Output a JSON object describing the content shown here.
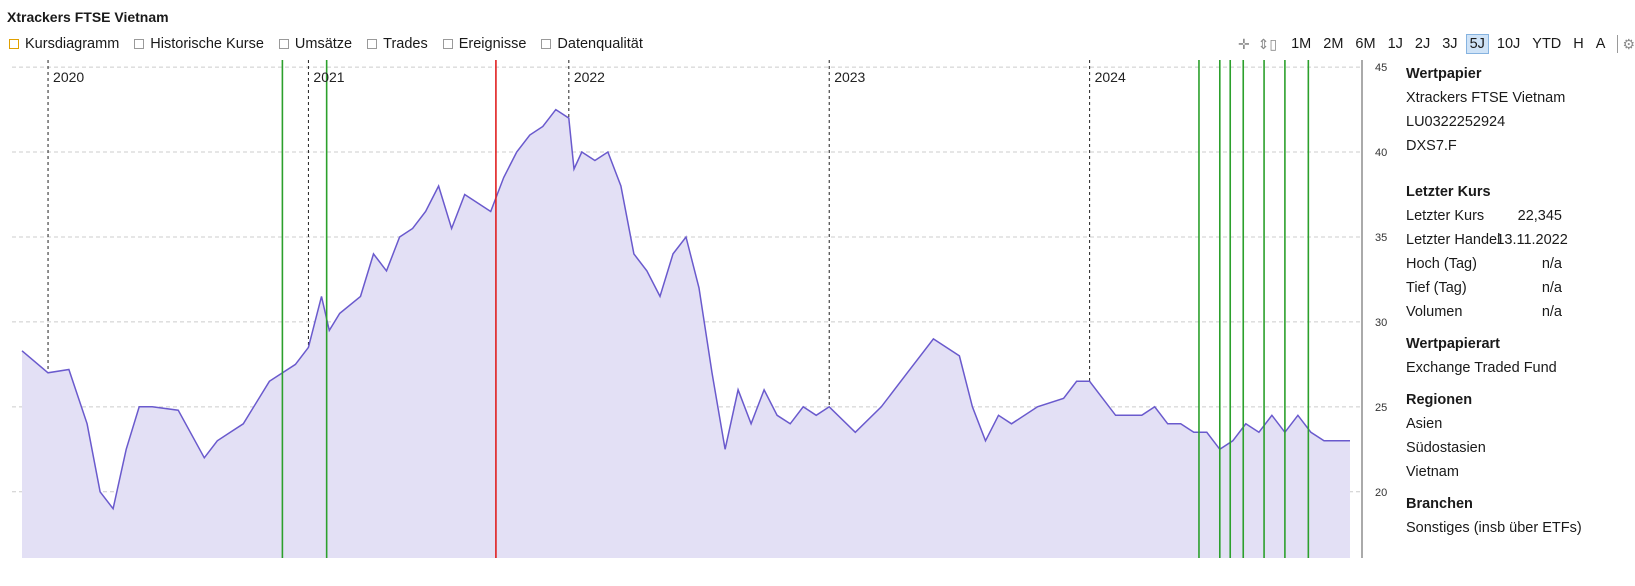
{
  "title": "Xtrackers FTSE Vietnam",
  "tabs": [
    {
      "label": "Kursdiagramm",
      "active": true
    },
    {
      "label": "Historische Kurse",
      "active": false
    },
    {
      "label": "Umsätze",
      "active": false
    },
    {
      "label": "Trades",
      "active": false
    },
    {
      "label": "Ereignisse",
      "active": false
    },
    {
      "label": "Datenqualität",
      "active": false
    }
  ],
  "toolbar": {
    "icons": [
      "crosshair-icon",
      "scale-icon"
    ],
    "ranges": [
      "1M",
      "2M",
      "6M",
      "1J",
      "2J",
      "3J",
      "5J",
      "10J",
      "YTD",
      "H",
      "A"
    ],
    "active_range": "5J",
    "settings_icon": "gear-icon"
  },
  "sidebar": {
    "wertpapier": {
      "heading": "Wertpapier",
      "name": "Xtrackers FTSE Vietnam",
      "isin": "LU0322252924",
      "symbol": "DXS7.F"
    },
    "letzter_kurs": {
      "heading": "Letzter Kurs",
      "rows": [
        {
          "label": "Letzter Kurs",
          "value": "22,345"
        },
        {
          "label": "Letzter Handel",
          "value": "13.11.2022"
        },
        {
          "label": "Hoch (Tag)",
          "value": "n/a"
        },
        {
          "label": "Tief (Tag)",
          "value": "n/a"
        },
        {
          "label": "Volumen",
          "value": "n/a"
        }
      ]
    },
    "wertpapierart": {
      "heading": "Wertpapierart",
      "value": "Exchange Traded Fund"
    },
    "regionen": {
      "heading": "Regionen",
      "items": [
        "Asien",
        "Südostasien",
        "Vietnam"
      ]
    },
    "branchen": {
      "heading": "Branchen",
      "value": "Sonstiges (insb über ETFs)"
    }
  },
  "colors": {
    "line": "#6a5acd",
    "area": "#e3e0f5",
    "buy": "#2ca02c",
    "sell": "#e02020",
    "grid": "#cccccc"
  },
  "chart_data": {
    "type": "area",
    "x_tick_labels": [
      "2020",
      "2021",
      "2022",
      "2023",
      "2024"
    ],
    "y_ticks": [
      20,
      25,
      30,
      35,
      40,
      45
    ],
    "ylim": [
      16.1,
      45.3
    ],
    "xlim": [
      2019.9,
      2025.0
    ],
    "grid": true,
    "series": [
      {
        "x": [
          2019.9,
          2020.0,
          2020.08,
          2020.15,
          2020.2,
          2020.25,
          2020.3,
          2020.35,
          2020.4,
          2020.5,
          2020.6,
          2020.65,
          2020.7,
          2020.75,
          2020.85,
          2020.95,
          2021.0,
          2021.05,
          2021.08,
          2021.12,
          2021.2,
          2021.25,
          2021.3,
          2021.35,
          2021.4,
          2021.45,
          2021.5,
          2021.55,
          2021.6,
          2021.65,
          2021.7,
          2021.75,
          2021.8,
          2021.85,
          2021.9,
          2021.95,
          2022.0,
          2022.02,
          2022.05,
          2022.1,
          2022.15,
          2022.2,
          2022.25,
          2022.3,
          2022.35,
          2022.4,
          2022.45,
          2022.5,
          2022.55,
          2022.6,
          2022.65,
          2022.7,
          2022.75,
          2022.8,
          2022.85,
          2022.9,
          2022.95,
          2023.0,
          2023.1,
          2023.2,
          2023.3,
          2023.4,
          2023.5,
          2023.55,
          2023.6,
          2023.65,
          2023.7,
          2023.8,
          2023.9,
          2023.95,
          2024.0,
          2024.1,
          2024.2,
          2024.25,
          2024.3,
          2024.35,
          2024.4,
          2024.45,
          2024.5,
          2024.55,
          2024.6,
          2024.65,
          2024.7,
          2024.75,
          2024.8,
          2024.85,
          2024.9,
          2024.95,
          2025.0
        ],
        "y": [
          28.3,
          27.0,
          27.2,
          24.0,
          20.0,
          19.0,
          22.5,
          25.0,
          25.0,
          24.8,
          22.0,
          23.0,
          23.5,
          24.0,
          26.5,
          27.5,
          28.5,
          31.5,
          29.5,
          30.5,
          31.5,
          34.0,
          33.0,
          35.0,
          35.5,
          36.5,
          38.0,
          35.5,
          37.5,
          37.0,
          36.5,
          38.5,
          40.0,
          41.0,
          41.5,
          42.5,
          42.0,
          39.0,
          40.0,
          39.5,
          40.0,
          38.0,
          34.0,
          33.0,
          31.5,
          34.0,
          35.0,
          32.0,
          27.0,
          22.5,
          26.0,
          24.0,
          26.0,
          24.5,
          24.0,
          25.0,
          24.5,
          25.0,
          23.5,
          25.0,
          27.0,
          29.0,
          28.0,
          25.0,
          23.0,
          24.5,
          24.0,
          25.0,
          25.5,
          26.5,
          26.5,
          24.5,
          24.5,
          25.0,
          24.0,
          24.0,
          23.5,
          23.5,
          22.5,
          23.0,
          24.0,
          23.5,
          24.5,
          23.5,
          24.5,
          23.5,
          23.0,
          23.0,
          23.0
        ]
      }
    ],
    "event_lines": [
      {
        "x": 2020.9,
        "type": "buy"
      },
      {
        "x": 2021.07,
        "type": "buy"
      },
      {
        "x": 2021.72,
        "type": "sell"
      },
      {
        "x": 2024.42,
        "type": "buy"
      },
      {
        "x": 2024.5,
        "type": "buy"
      },
      {
        "x": 2024.54,
        "type": "buy"
      },
      {
        "x": 2024.59,
        "type": "buy"
      },
      {
        "x": 2024.67,
        "type": "buy"
      },
      {
        "x": 2024.75,
        "type": "buy"
      },
      {
        "x": 2024.84,
        "type": "buy"
      }
    ]
  }
}
